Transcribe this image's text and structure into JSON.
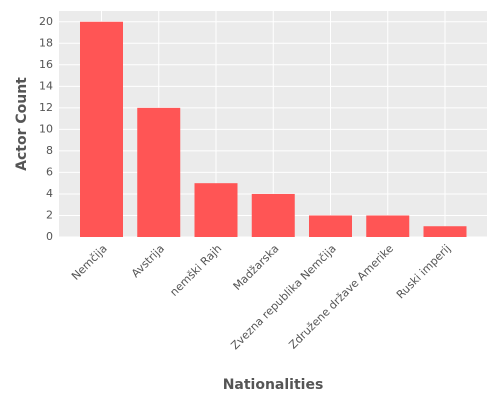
{
  "chart_data": {
    "type": "bar",
    "x_label": "Nationalities",
    "y_label": "Actor Count",
    "categories": [
      "Nemčija",
      "Avstrija",
      "nemški Rajh",
      "Madžarska",
      "Zvezna republika Nemčija",
      "Združene države Amerike",
      "Ruski imperij"
    ],
    "values": [
      20,
      12,
      5,
      4,
      2,
      2,
      1
    ],
    "color": "#ff5555",
    "ylim": [
      0,
      21
    ],
    "yticks": [
      0,
      2,
      4,
      6,
      8,
      10,
      12,
      14,
      16,
      18,
      20
    ],
    "grid": true
  }
}
